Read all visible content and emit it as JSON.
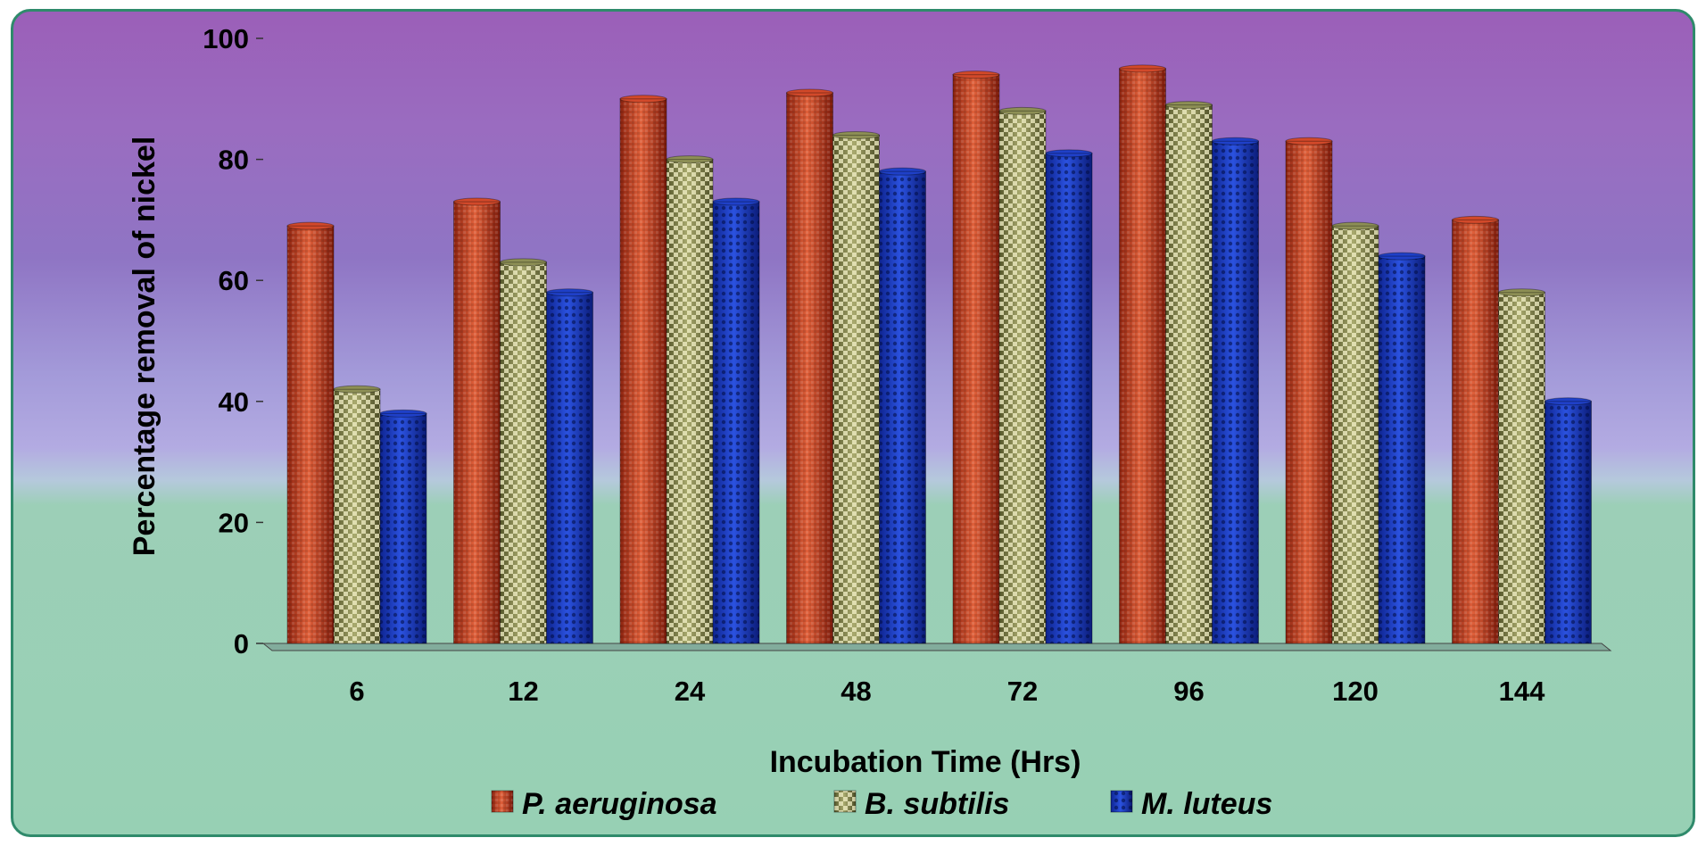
{
  "chart_data": {
    "type": "bar",
    "title": "",
    "xlabel": "Incubation Time (Hrs)",
    "ylabel": "Percentage removal of nickel",
    "categories": [
      "6",
      "12",
      "24",
      "48",
      "72",
      "96",
      "120",
      "144"
    ],
    "ylim": [
      0,
      100
    ],
    "yticks": [
      "0",
      "20",
      "40",
      "60",
      "80",
      "100"
    ],
    "grid": false,
    "legend_position": "bottom",
    "series": [
      {
        "name": "P. aeruginosa",
        "color": "#d2492a",
        "values": [
          69,
          73,
          90,
          91,
          94,
          95,
          83,
          70
        ]
      },
      {
        "name": "B. subtilis",
        "color": "#8d8f55",
        "values": [
          42,
          63,
          80,
          84,
          88,
          89,
          69,
          58
        ]
      },
      {
        "name": "M. luteus",
        "color": "#1f40c8",
        "values": [
          38,
          58,
          73,
          78,
          81,
          83,
          64,
          40
        ]
      }
    ]
  }
}
